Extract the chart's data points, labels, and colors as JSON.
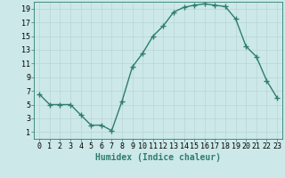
{
  "x": [
    0,
    1,
    2,
    3,
    4,
    5,
    6,
    7,
    8,
    9,
    10,
    11,
    12,
    13,
    14,
    15,
    16,
    17,
    18,
    19,
    20,
    21,
    22,
    23
  ],
  "y": [
    6.5,
    5.0,
    5.0,
    5.0,
    3.5,
    2.0,
    2.0,
    1.2,
    5.5,
    10.5,
    12.5,
    15.0,
    16.5,
    18.5,
    19.2,
    19.5,
    19.7,
    19.5,
    19.3,
    17.5,
    13.5,
    12.0,
    8.5,
    6.0
  ],
  "line_color": "#2e7d6e",
  "marker": "+",
  "marker_size": 4,
  "bg_color": "#cce8e8",
  "grid_color": "#b8d4d4",
  "xlabel": "Humidex (Indice chaleur)",
  "xlim": [
    -0.5,
    23.5
  ],
  "ylim": [
    0,
    20
  ],
  "yticks": [
    1,
    3,
    5,
    7,
    9,
    11,
    13,
    15,
    17,
    19
  ],
  "xticks": [
    0,
    1,
    2,
    3,
    4,
    5,
    6,
    7,
    8,
    9,
    10,
    11,
    12,
    13,
    14,
    15,
    16,
    17,
    18,
    19,
    20,
    21,
    22,
    23
  ],
  "xlabel_fontsize": 7,
  "tick_fontsize": 6,
  "line_width": 1.0,
  "figsize": [
    3.2,
    2.0
  ],
  "dpi": 100
}
